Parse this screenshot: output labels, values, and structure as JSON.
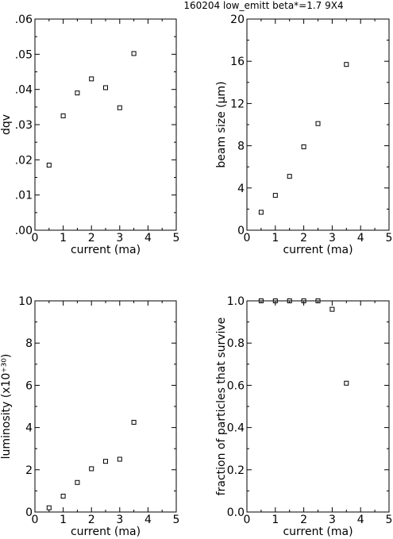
{
  "title": "160204  low_emitt  beta*=1.7  9X4",
  "chart_data": [
    {
      "type": "scatter",
      "xlabel": "current  (ma)",
      "ylabel": "dqv",
      "xlim": [
        0,
        5
      ],
      "ylim": [
        0,
        0.06
      ],
      "xticks": [
        0,
        1,
        2,
        3,
        4,
        5
      ],
      "xtick_labels": [
        "0",
        "1",
        "2",
        "3",
        "4",
        "5"
      ],
      "yticks": [
        0,
        0.01,
        0.02,
        0.03,
        0.04,
        0.05,
        0.06
      ],
      "ytick_labels": [
        ".00",
        ".01",
        ".02",
        ".03",
        ".04",
        ".05",
        ".06"
      ],
      "x": [
        0.5,
        1.0,
        1.5,
        2.0,
        2.5,
        3.0,
        3.5
      ],
      "y": [
        0.0185,
        0.0325,
        0.039,
        0.043,
        0.0405,
        0.0348,
        0.0502
      ],
      "marker": "open-square",
      "grid": false
    },
    {
      "type": "scatter",
      "xlabel": "current  (ma)",
      "ylabel": "beam size  (μm)",
      "xlim": [
        0,
        5
      ],
      "ylim": [
        0,
        20
      ],
      "xticks": [
        0,
        1,
        2,
        3,
        4,
        5
      ],
      "xtick_labels": [
        "0",
        "1",
        "2",
        "3",
        "4",
        "5"
      ],
      "yticks": [
        0,
        4,
        8,
        12,
        16,
        20
      ],
      "ytick_labels": [
        "0",
        "4",
        "8",
        "12",
        "16",
        "20"
      ],
      "x": [
        0.5,
        1.0,
        1.5,
        2.0,
        2.5,
        3.5
      ],
      "y": [
        1.7,
        3.3,
        5.1,
        7.9,
        10.1,
        15.7
      ],
      "marker": "open-square",
      "grid": false
    },
    {
      "type": "scatter",
      "xlabel": "current  (ma)",
      "ylabel": "luminosity   (x10⁺³⁰)",
      "xlim": [
        0,
        5
      ],
      "ylim": [
        0,
        10
      ],
      "xticks": [
        0,
        1,
        2,
        3,
        4,
        5
      ],
      "xtick_labels": [
        "0",
        "1",
        "2",
        "3",
        "4",
        "5"
      ],
      "yticks": [
        0,
        2,
        4,
        6,
        8,
        10
      ],
      "ytick_labels": [
        "0",
        "2",
        "4",
        "6",
        "8",
        "10"
      ],
      "x": [
        0.5,
        1.0,
        1.5,
        2.0,
        2.5,
        3.0,
        3.5
      ],
      "y": [
        0.2,
        0.75,
        1.4,
        2.05,
        2.4,
        2.5,
        4.25
      ],
      "marker": "open-square",
      "grid": false
    },
    {
      "type": "scatter",
      "xlabel": "current  (ma)",
      "ylabel": "fraction  of  particles  that  survive",
      "xlim": [
        0,
        5
      ],
      "ylim": [
        0,
        1.0
      ],
      "xticks": [
        0,
        1,
        2,
        3,
        4,
        5
      ],
      "xtick_labels": [
        "0",
        "1",
        "2",
        "3",
        "4",
        "5"
      ],
      "yticks": [
        0,
        0.2,
        0.4,
        0.6,
        0.8,
        1.0
      ],
      "ytick_labels": [
        "0.0",
        "0.2",
        "0.4",
        "0.6",
        "0.8",
        "1.0"
      ],
      "x": [
        0.5,
        1.0,
        1.5,
        2.0,
        2.5,
        3.0,
        3.5
      ],
      "y": [
        1.0,
        1.0,
        1.0,
        1.0,
        1.0,
        0.96,
        0.61
      ],
      "marker": "open-square",
      "grid": false
    }
  ]
}
